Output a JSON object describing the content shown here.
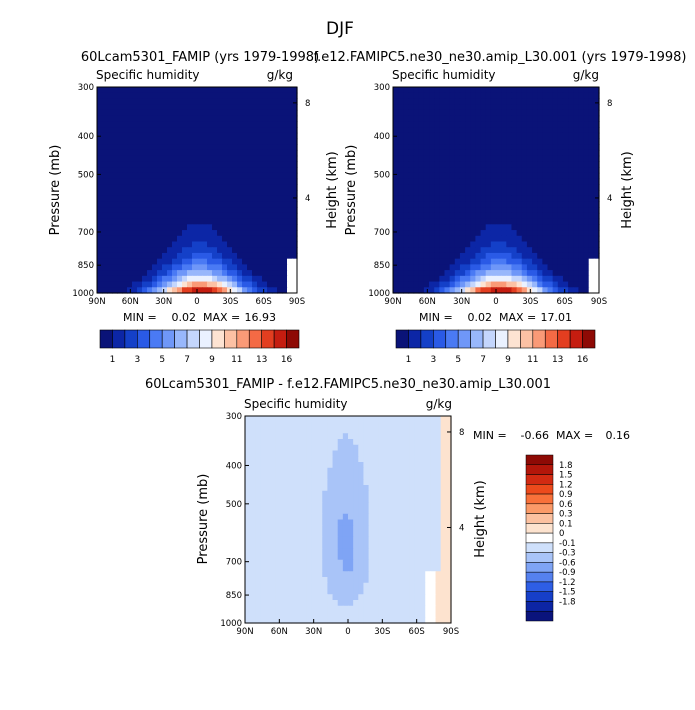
{
  "figure": {
    "title": "DJF"
  },
  "chart_data": [
    {
      "type": "heatmap",
      "id": "panel-left",
      "title": "60Lcam5301_FAMIP (yrs 1979-1998)",
      "variable": "Specific humidity",
      "units": "g/kg",
      "xlabel": "",
      "ylabel": "Pressure (mb)",
      "y2label": "Height (km)",
      "x_ticks": [
        "90N",
        "60N",
        "30N",
        "0",
        "30S",
        "60S",
        "90S"
      ],
      "y_ticks": [
        300,
        400,
        500,
        700,
        850,
        1000
      ],
      "y2_ticks": [
        8,
        4
      ],
      "ylim": [
        1000,
        300
      ],
      "min_label": "MIN =",
      "min_value": "0.02",
      "max_label": "MAX =",
      "max_value": "16.93",
      "colorbar_labels": [
        "1",
        "3",
        "5",
        "7",
        "9",
        "11",
        "13",
        "16"
      ],
      "colorbar_colors": [
        "#0a1378",
        "#0c26a6",
        "#1440c8",
        "#2a5ae6",
        "#4a7af4",
        "#6f97f8",
        "#98b7fb",
        "#c4d6fd",
        "#eaf1ff",
        "#fde3d2",
        "#fcc1a4",
        "#fa9a77",
        "#f46a45",
        "#e33e20",
        "#c51d10",
        "#8e0a05"
      ],
      "field": {
        "peak": 16.93,
        "lat_center": -3,
        "lat_halfwidth_surface": 42,
        "lat_halfwidth_top": 8,
        "vertical_scale_height": 2.6
      }
    },
    {
      "type": "heatmap",
      "id": "panel-right",
      "title": "f.e12.FAMIPC5.ne30_ne30.amip_L30.001 (yrs 1979-1998)",
      "variable": "Specific humidity",
      "units": "g/kg",
      "xlabel": "",
      "ylabel": "Pressure (mb)",
      "y2label": "Height (km)",
      "x_ticks": [
        "90N",
        "60N",
        "30N",
        "0",
        "30S",
        "60S",
        "90S"
      ],
      "y_ticks": [
        300,
        400,
        500,
        700,
        850,
        1000
      ],
      "y2_ticks": [
        8,
        4
      ],
      "ylim": [
        1000,
        300
      ],
      "min_label": "MIN =",
      "min_value": "0.02",
      "max_label": "MAX =",
      "max_value": "17.01",
      "colorbar_labels": [
        "1",
        "3",
        "5",
        "7",
        "9",
        "11",
        "13",
        "16"
      ],
      "colorbar_colors": [
        "#0a1378",
        "#0c26a6",
        "#1440c8",
        "#2a5ae6",
        "#4a7af4",
        "#6f97f8",
        "#98b7fb",
        "#c4d6fd",
        "#eaf1ff",
        "#fde3d2",
        "#fcc1a4",
        "#fa9a77",
        "#f46a45",
        "#e33e20",
        "#c51d10",
        "#8e0a05"
      ],
      "field": {
        "peak": 17.01,
        "lat_center": -3,
        "lat_halfwidth_surface": 42,
        "lat_halfwidth_top": 8,
        "vertical_scale_height": 2.6
      }
    },
    {
      "type": "heatmap",
      "id": "panel-diff",
      "title": "60Lcam5301_FAMIP - f.e12.FAMIPC5.ne30_ne30.amip_L30.001",
      "variable": "Specific humidity",
      "units": "g/kg",
      "xlabel": "",
      "ylabel": "Pressure (mb)",
      "y2label": "Height (km)",
      "x_ticks": [
        "90N",
        "60N",
        "30N",
        "0",
        "30S",
        "60S",
        "90S"
      ],
      "y_ticks": [
        300,
        400,
        500,
        700,
        850,
        1000
      ],
      "y2_ticks": [
        8,
        4
      ],
      "ylim": [
        1000,
        300
      ],
      "min_label": "MIN =",
      "min_value": "-0.66",
      "max_label": "MAX =",
      "max_value": "0.16",
      "colorbar_labels": [
        "1.8",
        "1.5",
        "1.2",
        "0.9",
        "0.6",
        "0.3",
        "0.1",
        "0",
        "-0.1",
        "-0.3",
        "-0.6",
        "-0.9",
        "-1.2",
        "-1.5",
        "-1.8"
      ],
      "colorbar_colors": [
        "#8e0a05",
        "#b3160a",
        "#d22a12",
        "#ec4a1c",
        "#f8713a",
        "#fb9a68",
        "#fcc1a0",
        "#fde3cf",
        "#ffffff",
        "#cfe0fb",
        "#a9c4f8",
        "#7fa4f5",
        "#5581ef",
        "#2e5ee5",
        "#163fc9",
        "#0c25a4",
        "#0a137c"
      ],
      "field": {
        "background": -0.05,
        "core_value": -0.35,
        "min": -0.66,
        "max": 0.16,
        "lat_center": 2
      }
    }
  ]
}
